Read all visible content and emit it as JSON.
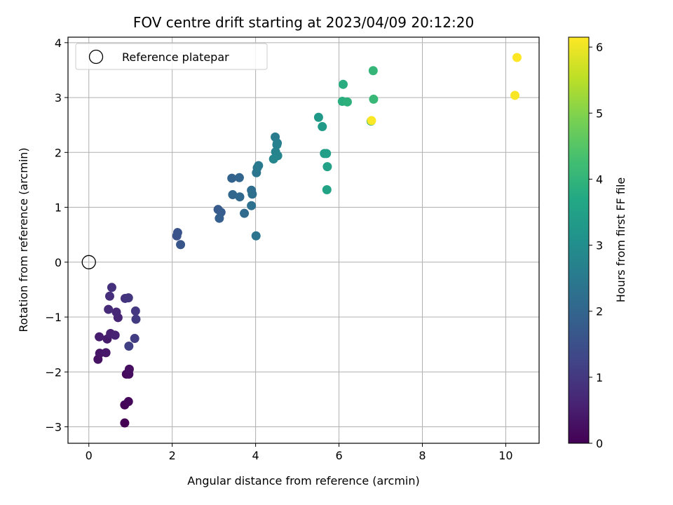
{
  "chart_data": {
    "type": "scatter",
    "title": "FOV centre drift starting at 2023/04/09 20:12:20",
    "xlabel": "Angular distance from reference (arcmin)",
    "ylabel": "Rotation from reference (arcmin)",
    "xlim": [
      -0.5,
      10.8
    ],
    "ylim": [
      -3.3,
      4.1
    ],
    "xticks": [
      0,
      2,
      4,
      6,
      8,
      10
    ],
    "yticks": [
      -3,
      -2,
      -1,
      0,
      1,
      2,
      3,
      4
    ],
    "grid": true,
    "legend": {
      "position": "top-left",
      "entries": [
        "Reference platepar"
      ]
    },
    "reference_point": {
      "x": 0,
      "y": 0,
      "label": "Reference platepar"
    },
    "colorbar": {
      "label": "Hours from first FF file",
      "range": [
        0,
        6.15
      ],
      "ticks": [
        0,
        1,
        2,
        3,
        4,
        5,
        6
      ],
      "colormap": "viridis"
    },
    "series": [
      {
        "points": [
          {
            "x": 0.86,
            "y": -2.93,
            "c": 0.0
          },
          {
            "x": 0.86,
            "y": -2.6,
            "c": 0.05
          },
          {
            "x": 0.95,
            "y": -2.54,
            "c": 0.1
          },
          {
            "x": 0.9,
            "y": -2.04,
            "c": 0.15
          },
          {
            "x": 0.96,
            "y": -2.04,
            "c": 0.2
          },
          {
            "x": 0.97,
            "y": -1.95,
            "c": 0.25
          },
          {
            "x": 0.22,
            "y": -1.77,
            "c": 0.3
          },
          {
            "x": 0.26,
            "y": -1.66,
            "c": 0.35
          },
          {
            "x": 0.41,
            "y": -1.65,
            "c": 0.4
          },
          {
            "x": 0.44,
            "y": -1.4,
            "c": 0.45
          },
          {
            "x": 0.25,
            "y": -1.36,
            "c": 0.5
          },
          {
            "x": 0.52,
            "y": -1.3,
            "c": 0.55
          },
          {
            "x": 0.63,
            "y": -1.33,
            "c": 0.6
          },
          {
            "x": 0.7,
            "y": -1.01,
            "c": 0.65
          },
          {
            "x": 0.66,
            "y": -0.91,
            "c": 0.7
          },
          {
            "x": 0.47,
            "y": -0.86,
            "c": 0.75
          },
          {
            "x": 0.5,
            "y": -0.62,
            "c": 0.8
          },
          {
            "x": 0.55,
            "y": -0.46,
            "c": 0.85
          },
          {
            "x": 0.87,
            "y": -0.66,
            "c": 0.9
          },
          {
            "x": 0.95,
            "y": -0.65,
            "c": 0.95
          },
          {
            "x": 1.12,
            "y": -0.89,
            "c": 1.0
          },
          {
            "x": 1.13,
            "y": -1.04,
            "c": 1.05
          },
          {
            "x": 1.1,
            "y": -1.39,
            "c": 1.1
          },
          {
            "x": 0.96,
            "y": -1.53,
            "c": 1.15
          },
          {
            "x": 2.11,
            "y": 0.48,
            "c": 1.55
          },
          {
            "x": 2.13,
            "y": 0.54,
            "c": 1.6
          },
          {
            "x": 2.2,
            "y": 0.32,
            "c": 1.65
          },
          {
            "x": 3.1,
            "y": 0.96,
            "c": 1.75
          },
          {
            "x": 3.17,
            "y": 0.91,
            "c": 1.8
          },
          {
            "x": 3.13,
            "y": 0.8,
            "c": 1.85
          },
          {
            "x": 3.43,
            "y": 1.53,
            "c": 1.95
          },
          {
            "x": 3.61,
            "y": 1.54,
            "c": 2.0
          },
          {
            "x": 3.45,
            "y": 1.23,
            "c": 2.05
          },
          {
            "x": 3.62,
            "y": 1.19,
            "c": 2.1
          },
          {
            "x": 3.73,
            "y": 0.89,
            "c": 2.15
          },
          {
            "x": 3.9,
            "y": 1.31,
            "c": 2.2
          },
          {
            "x": 3.92,
            "y": 1.24,
            "c": 2.25
          },
          {
            "x": 3.9,
            "y": 1.03,
            "c": 2.3
          },
          {
            "x": 4.01,
            "y": 0.48,
            "c": 2.35
          },
          {
            "x": 4.02,
            "y": 1.63,
            "c": 2.4
          },
          {
            "x": 4.04,
            "y": 1.72,
            "c": 2.45
          },
          {
            "x": 4.07,
            "y": 1.76,
            "c": 2.5
          },
          {
            "x": 4.47,
            "y": 2.28,
            "c": 2.55
          },
          {
            "x": 4.52,
            "y": 2.17,
            "c": 2.6
          },
          {
            "x": 4.51,
            "y": 2.14,
            "c": 2.65
          },
          {
            "x": 4.48,
            "y": 2.01,
            "c": 2.7
          },
          {
            "x": 4.53,
            "y": 1.94,
            "c": 2.75
          },
          {
            "x": 4.43,
            "y": 1.88,
            "c": 2.8
          },
          {
            "x": 5.51,
            "y": 2.64,
            "c": 3.3
          },
          {
            "x": 5.6,
            "y": 2.47,
            "c": 3.35
          },
          {
            "x": 5.65,
            "y": 1.98,
            "c": 3.4
          },
          {
            "x": 5.7,
            "y": 1.98,
            "c": 3.45
          },
          {
            "x": 5.72,
            "y": 1.74,
            "c": 3.5
          },
          {
            "x": 5.71,
            "y": 1.32,
            "c": 3.55
          },
          {
            "x": 6.1,
            "y": 3.24,
            "c": 3.8
          },
          {
            "x": 6.08,
            "y": 2.93,
            "c": 3.85
          },
          {
            "x": 6.2,
            "y": 2.92,
            "c": 3.9
          },
          {
            "x": 6.77,
            "y": 2.57,
            "c": 4.0
          },
          {
            "x": 6.82,
            "y": 3.49,
            "c": 4.05
          },
          {
            "x": 6.83,
            "y": 2.97,
            "c": 4.1
          },
          {
            "x": 10.22,
            "y": 3.04,
            "c": 6.1
          },
          {
            "x": 10.27,
            "y": 3.73,
            "c": 6.15
          },
          {
            "x": 6.78,
            "y": 2.58,
            "c": 6.12
          }
        ]
      }
    ]
  }
}
